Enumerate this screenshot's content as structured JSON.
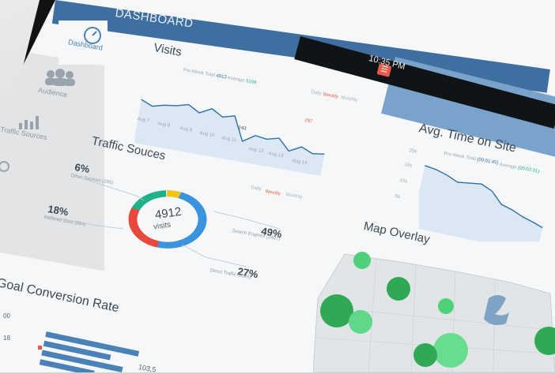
{
  "header": {
    "title": "DASHBOARD",
    "time": "10:35 PM"
  },
  "sidebar": {
    "items": [
      {
        "label": "Dashboard",
        "icon": "speedometer-icon"
      },
      {
        "label": "Audience",
        "icon": "people-icon"
      },
      {
        "label": "Traffic Sources",
        "icon": "bar-chart-icon"
      }
    ]
  },
  "visits": {
    "title": "Visits",
    "legend_prev": "Pre-Week Total",
    "legend_prev_val": "4913",
    "legend_avg": "Average",
    "legend_avg_val": "5196",
    "tabs": [
      "Daily",
      "Weekly",
      "Monthly"
    ],
    "active_tab": "Weekly",
    "x_labels": [
      "Aug 7",
      "Aug 8",
      "Aug 9",
      "Aug 10",
      "Aug 11",
      "Aug 12",
      "Aug 13",
      "Aug 14"
    ],
    "callout_low": "143",
    "callout_high": "287",
    "colors": {
      "line": "#2d6fa8",
      "fill": "#dbe7f2",
      "accent": "#e55b4b"
    }
  },
  "traffic": {
    "title": "Traffic Souces",
    "center_value": "4912",
    "center_label": "visits",
    "tabs": [
      "Daily",
      "Weekly",
      "Monthly"
    ],
    "active_tab": "Weekly",
    "slices": [
      {
        "pct": "6%",
        "label": "Other Sources (295)",
        "color": "#f2c316"
      },
      {
        "pct": "18%",
        "label": "Reffered Sites (884)",
        "color": "#1fb18a"
      },
      {
        "pct": "49%",
        "label": "Search Engines (2407)",
        "color": "#3a93dd"
      },
      {
        "pct": "27%",
        "label": "Direct Traffic (1326)",
        "color": "#e8493d"
      }
    ]
  },
  "avg_time": {
    "title": "Avg. Time on Site",
    "legend_prev": "Pre-Week Total",
    "legend_prev_val": "(00:01:45)",
    "legend_avg": "Average",
    "legend_avg_val": "(00:02:31)",
    "y_labels": [
      "20s",
      "15s",
      "10s",
      "5s"
    ]
  },
  "map": {
    "title": "Map Overlay"
  },
  "goal": {
    "title": "Goal Conversion Rate",
    "labels": [
      "00",
      "18"
    ],
    "value": "103,5"
  }
}
